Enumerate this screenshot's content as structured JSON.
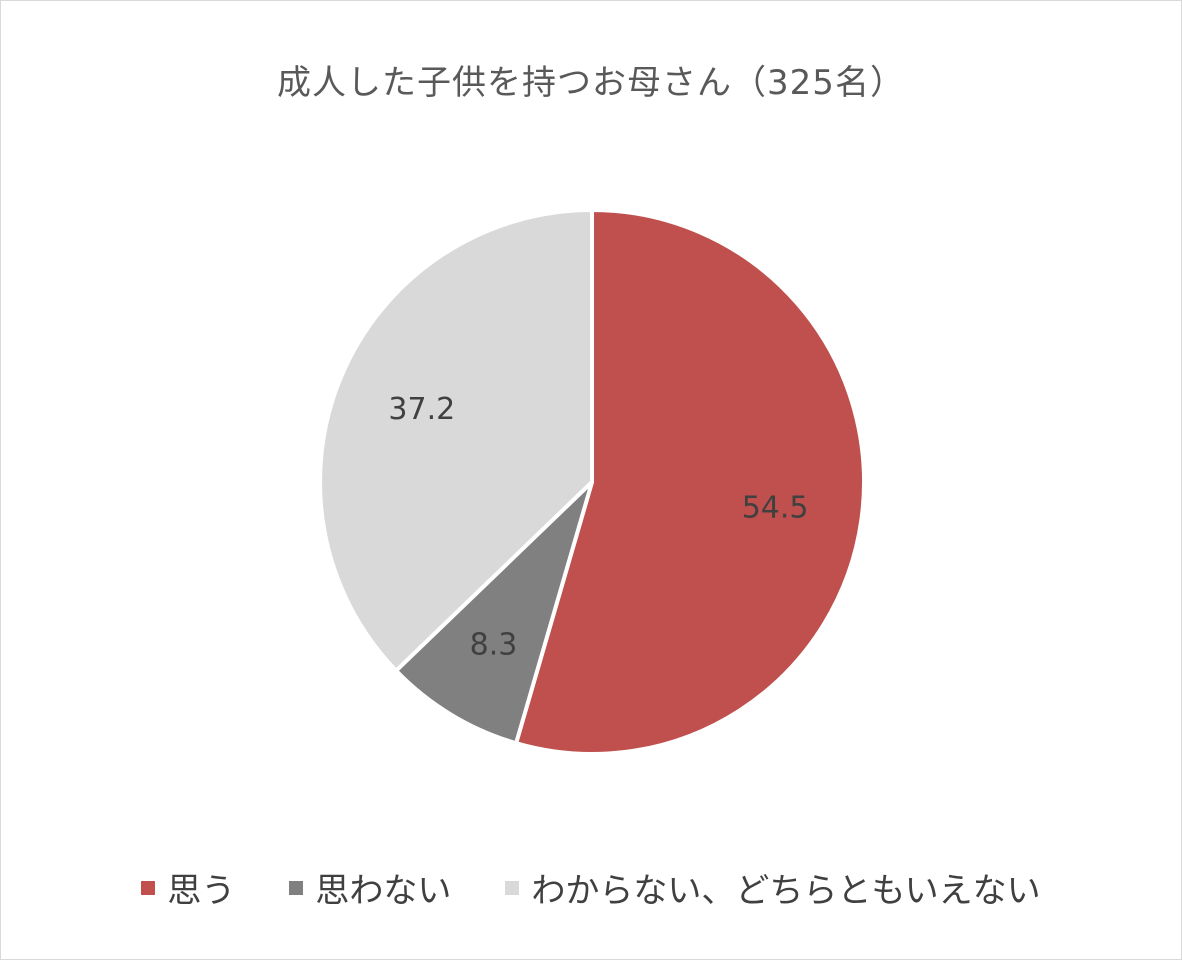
{
  "chart_data": {
    "type": "pie",
    "title": "成人した子供を持つお母さん（325名）",
    "categories": [
      "思う",
      "思わない",
      "わからない、どちらともいえない"
    ],
    "values": [
      54.5,
      8.3,
      37.2
    ],
    "colors": [
      "#C0504D",
      "#808080",
      "#D9D9D9"
    ],
    "data_labels": [
      "54.5",
      "8.3",
      "37.2"
    ],
    "legend_position": "bottom"
  }
}
